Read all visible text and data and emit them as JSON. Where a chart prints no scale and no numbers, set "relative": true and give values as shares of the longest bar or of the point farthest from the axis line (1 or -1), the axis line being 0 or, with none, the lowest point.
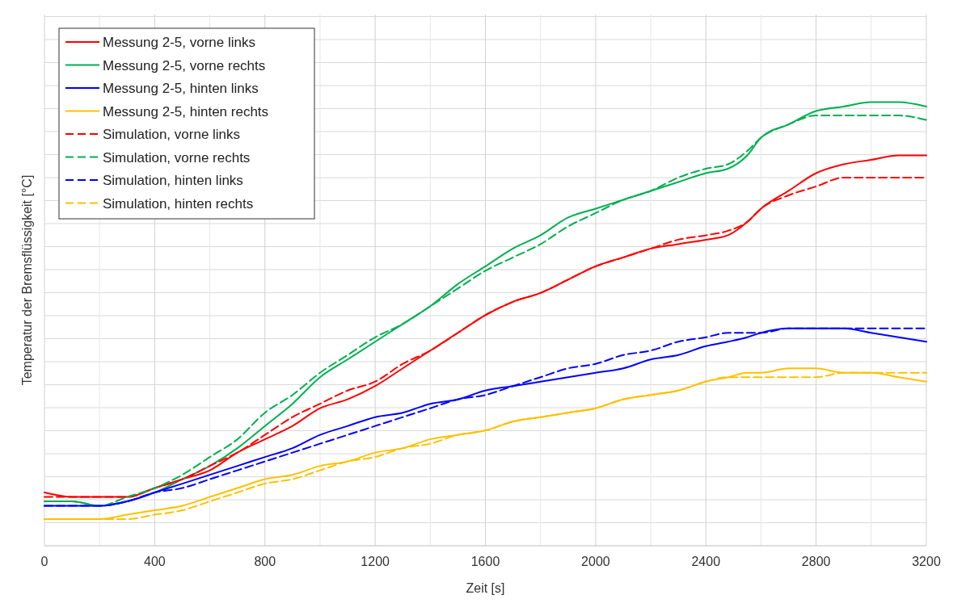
{
  "chart_data": {
    "type": "line",
    "relative": true,
    "xlabel": "Zeit [s]",
    "ylabel": "Temperatur der Bremsflüssigkeit [°C]",
    "xlim": [
      0,
      3200
    ],
    "xticks": [
      0,
      400,
      800,
      1200,
      1600,
      2000,
      2400,
      2800,
      3200
    ],
    "grid": true,
    "legend": "top left",
    "x": [
      0,
      100,
      200,
      300,
      400,
      500,
      600,
      700,
      800,
      900,
      1000,
      1100,
      1200,
      1300,
      1400,
      1500,
      1600,
      1700,
      1800,
      1900,
      2000,
      2100,
      2200,
      2300,
      2400,
      2480,
      2550,
      2600,
      2700,
      2800,
      2900,
      3000,
      3100,
      3200
    ],
    "series": [
      {
        "name": "Messung 2-5, vorne links",
        "color": "#ff0000",
        "line_style": "solid",
        "values": [
          0.12,
          0.11,
          0.11,
          0.11,
          0.13,
          0.15,
          0.17,
          0.21,
          0.24,
          0.27,
          0.31,
          0.33,
          0.36,
          0.4,
          0.44,
          0.48,
          0.52,
          0.55,
          0.57,
          0.6,
          0.63,
          0.65,
          0.67,
          0.68,
          0.69,
          0.7,
          0.73,
          0.76,
          0.8,
          0.84,
          0.86,
          0.87,
          0.88,
          0.88
        ]
      },
      {
        "name": "Messung 2-5, vorne rechts",
        "color": "#00b050",
        "line_style": "solid",
        "values": [
          0.1,
          0.1,
          0.09,
          0.1,
          0.12,
          0.15,
          0.18,
          0.22,
          0.27,
          0.32,
          0.38,
          0.42,
          0.46,
          0.5,
          0.54,
          0.59,
          0.63,
          0.67,
          0.7,
          0.74,
          0.76,
          0.78,
          0.8,
          0.82,
          0.84,
          0.85,
          0.88,
          0.92,
          0.95,
          0.98,
          0.99,
          1,
          1,
          0.99
        ]
      },
      {
        "name": "Messung 2-5, hinten links",
        "color": "#0000ff",
        "line_style": "solid",
        "values": [
          0.09,
          0.09,
          0.09,
          0.1,
          0.12,
          0.14,
          0.16,
          0.18,
          0.2,
          0.22,
          0.25,
          0.27,
          0.29,
          0.3,
          0.32,
          0.33,
          0.35,
          0.36,
          0.37,
          0.38,
          0.39,
          0.4,
          0.42,
          0.43,
          0.45,
          0.46,
          0.47,
          0.48,
          0.49,
          0.49,
          0.49,
          0.48,
          0.47,
          0.46
        ]
      },
      {
        "name": "Messung 2-5, hinten rechts",
        "color": "#ffc000",
        "line_style": "solid",
        "values": [
          0.06,
          0.06,
          0.06,
          0.07,
          0.08,
          0.09,
          0.11,
          0.13,
          0.15,
          0.16,
          0.18,
          0.19,
          0.21,
          0.22,
          0.24,
          0.25,
          0.26,
          0.28,
          0.29,
          0.3,
          0.31,
          0.33,
          0.34,
          0.35,
          0.37,
          0.38,
          0.39,
          0.39,
          0.4,
          0.4,
          0.39,
          0.39,
          0.38,
          0.37
        ]
      },
      {
        "name": "Simulation, vorne links",
        "color": "#ff0000",
        "line_style": "dashed",
        "values": [
          0.11,
          0.11,
          0.11,
          0.11,
          0.13,
          0.15,
          0.18,
          0.21,
          0.25,
          0.29,
          0.32,
          0.35,
          0.37,
          0.41,
          0.44,
          0.48,
          0.52,
          0.55,
          0.57,
          0.6,
          0.63,
          0.65,
          0.67,
          0.69,
          0.7,
          0.71,
          0.73,
          0.76,
          0.79,
          0.81,
          0.83,
          0.83,
          0.83,
          0.83
        ]
      },
      {
        "name": "Simulation, vorne rechts",
        "color": "#00b050",
        "line_style": "dashed",
        "values": [
          0.1,
          0.1,
          0.09,
          0.11,
          0.13,
          0.16,
          0.2,
          0.24,
          0.3,
          0.34,
          0.39,
          0.43,
          0.47,
          0.5,
          0.54,
          0.58,
          0.62,
          0.65,
          0.68,
          0.72,
          0.75,
          0.78,
          0.8,
          0.83,
          0.85,
          0.86,
          0.89,
          0.92,
          0.95,
          0.97,
          0.97,
          0.97,
          0.97,
          0.96
        ]
      },
      {
        "name": "Simulation, hinten links",
        "color": "#0000ff",
        "line_style": "dashed",
        "values": [
          0.09,
          0.09,
          0.09,
          0.1,
          0.12,
          0.13,
          0.15,
          0.17,
          0.19,
          0.21,
          0.23,
          0.25,
          0.27,
          0.29,
          0.31,
          0.33,
          0.34,
          0.36,
          0.38,
          0.4,
          0.41,
          0.43,
          0.44,
          0.46,
          0.47,
          0.48,
          0.48,
          0.48,
          0.49,
          0.49,
          0.49,
          0.49,
          0.49,
          0.49
        ]
      },
      {
        "name": "Simulation, hinten rechts",
        "color": "#ffc000",
        "line_style": "dashed",
        "values": [
          0.06,
          0.06,
          0.06,
          0.06,
          0.07,
          0.08,
          0.1,
          0.12,
          0.14,
          0.15,
          0.17,
          0.19,
          0.2,
          0.22,
          0.23,
          0.25,
          0.26,
          0.28,
          0.29,
          0.3,
          0.31,
          0.33,
          0.34,
          0.35,
          0.37,
          0.38,
          0.38,
          0.38,
          0.38,
          0.38,
          0.39,
          0.39,
          0.39,
          0.39
        ]
      }
    ]
  }
}
